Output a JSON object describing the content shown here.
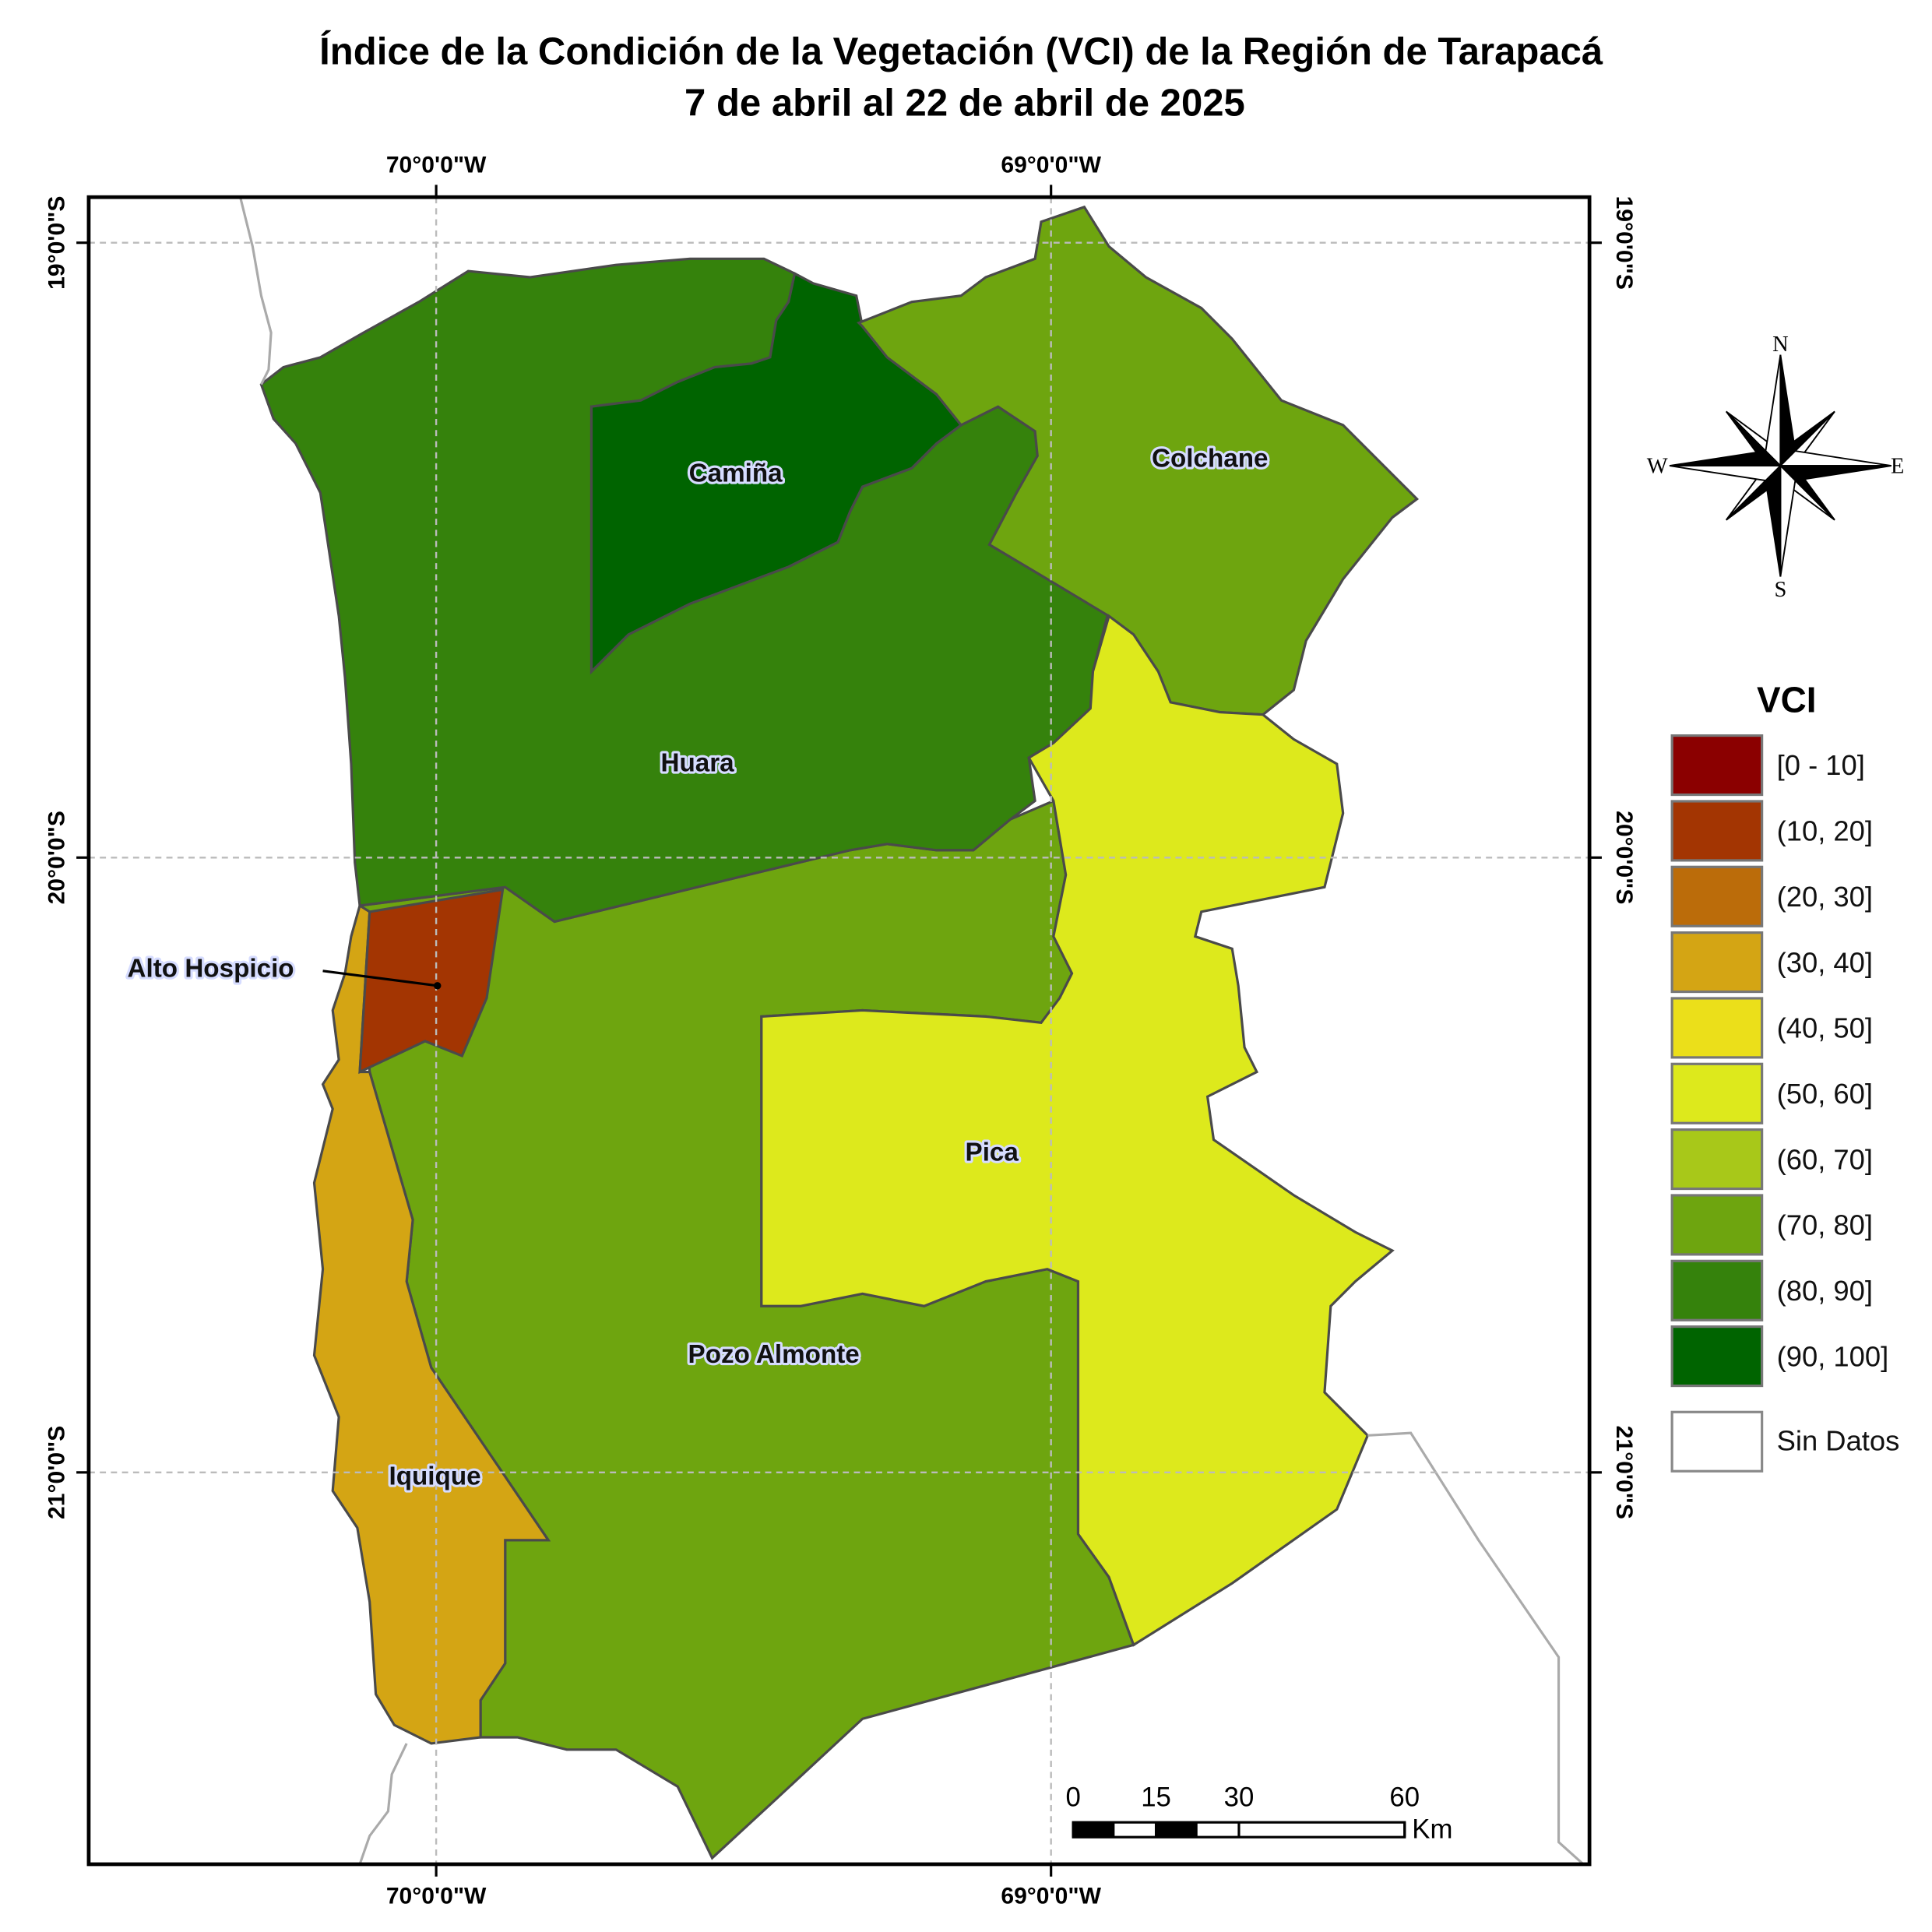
{
  "title": [
    "Índice de la Condición de la Vegetación (VCI) de la Región de Tarapacá",
    "7 de abril al 22 de abril de 2025"
  ],
  "graticule": {
    "longitudes": [
      "70°0'0\"W",
      "69°0'0\"W"
    ],
    "latitudes": [
      "19°0'0\"S",
      "20°0'0\"S",
      "21°0'0\"S"
    ]
  },
  "regions": [
    {
      "name": "Pozo Almonte",
      "color": "#6ea50f"
    },
    {
      "name": "Huara",
      "color": "#35820c"
    },
    {
      "name": "Camiña",
      "color": "#006400"
    },
    {
      "name": "Colchane",
      "color": "#6ea50f"
    },
    {
      "name": "Pica",
      "color": "#dde91c"
    },
    {
      "name": "Iquique",
      "color": "#d4a514"
    },
    {
      "name": "Alto Hospicio",
      "color": "#a33502"
    }
  ],
  "legend": {
    "title": "VCI",
    "classes": [
      {
        "label": "[0 - 10]",
        "color": "#8b0000"
      },
      {
        "label": "(10, 20]",
        "color": "#a33502"
      },
      {
        "label": "(20, 30]",
        "color": "#bb6c0a"
      },
      {
        "label": "(30, 40]",
        "color": "#d4a514"
      },
      {
        "label": "(40, 50]",
        "color": "#ebdf1a"
      },
      {
        "label": "(50, 60]",
        "color": "#dde91c"
      },
      {
        "label": "(60, 70]",
        "color": "#a8c819"
      },
      {
        "label": "(70, 80]",
        "color": "#6ea50f"
      },
      {
        "label": "(80, 90]",
        "color": "#35820c"
      },
      {
        "label": "(90, 100]",
        "color": "#006400"
      }
    ],
    "no_data": "Sin Datos"
  },
  "compass": {
    "north": "N",
    "east": "E",
    "south": "S",
    "west": "W"
  },
  "scale_bar": {
    "ticks": [
      0,
      15,
      30,
      60
    ],
    "unit": "Km"
  }
}
